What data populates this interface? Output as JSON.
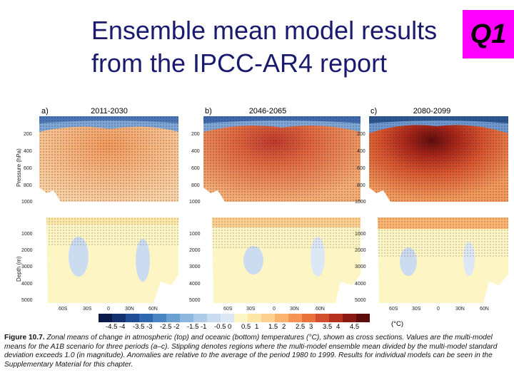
{
  "slide": {
    "title_line1": "Ensemble mean model results",
    "title_line2": "from the IPCC-AR4 report",
    "badge": "Q1"
  },
  "panels": [
    {
      "label": "a)",
      "period": "2011-2030"
    },
    {
      "label": "b)",
      "period": "2046-2065"
    },
    {
      "label": "c)",
      "period": "2080-2099"
    }
  ],
  "axes": {
    "pressure_title": "Pressure (hPa)",
    "pressure_ticks": [
      "200",
      "400",
      "600",
      "800",
      "1000"
    ],
    "depth_title": "Depth (m)",
    "depth_ticks": [
      "1000",
      "2000",
      "3000",
      "4000",
      "5000"
    ],
    "lat_ticks_a": [
      "60S",
      "30S",
      "0",
      "30N",
      "60N"
    ],
    "lat_ticks_bc": [
      "60S",
      "30S",
      "0",
      "30N",
      "60N"
    ]
  },
  "colorbar": {
    "labels": [
      "-4.5",
      "-4",
      "-3.5",
      "-3",
      "-2.5",
      "-2",
      "-1.5",
      "-1",
      "-0.5",
      "0",
      "0.5",
      "1",
      "1.5",
      "2",
      "2.5",
      "3",
      "3.5",
      "4",
      "4.5"
    ],
    "unit": "(°C)",
    "colors": [
      "#0a1a4a",
      "#14306e",
      "#1f4c94",
      "#2f68b0",
      "#4a85c4",
      "#6a9fd2",
      "#8db7de",
      "#aecbe8",
      "#cbdcf0",
      "#dde8f6",
      "#fdf6c4",
      "#fde6a6",
      "#fdd090",
      "#fbb370",
      "#f59454",
      "#e8713c",
      "#d24e2c",
      "#b4301f",
      "#8c1a14",
      "#5e0c0c"
    ]
  },
  "caption": {
    "bold": "Figure 10.7.",
    "text": " Zonal means of change in atmospheric (top) and oceanic (bottom) temperatures (°C), shown as cross sections. Values are the multi-model means for the A1B scenario for three periods (a–c). Stippling denotes regions where the multi-model ensemble mean divided by the multi-model standard deviation exceeds 1.0 (in magnitude). Anomalies are relative to the average of the period 1980 to 1999. Results for individual models can be seen in the Supplementary Material for this chapter."
  }
}
